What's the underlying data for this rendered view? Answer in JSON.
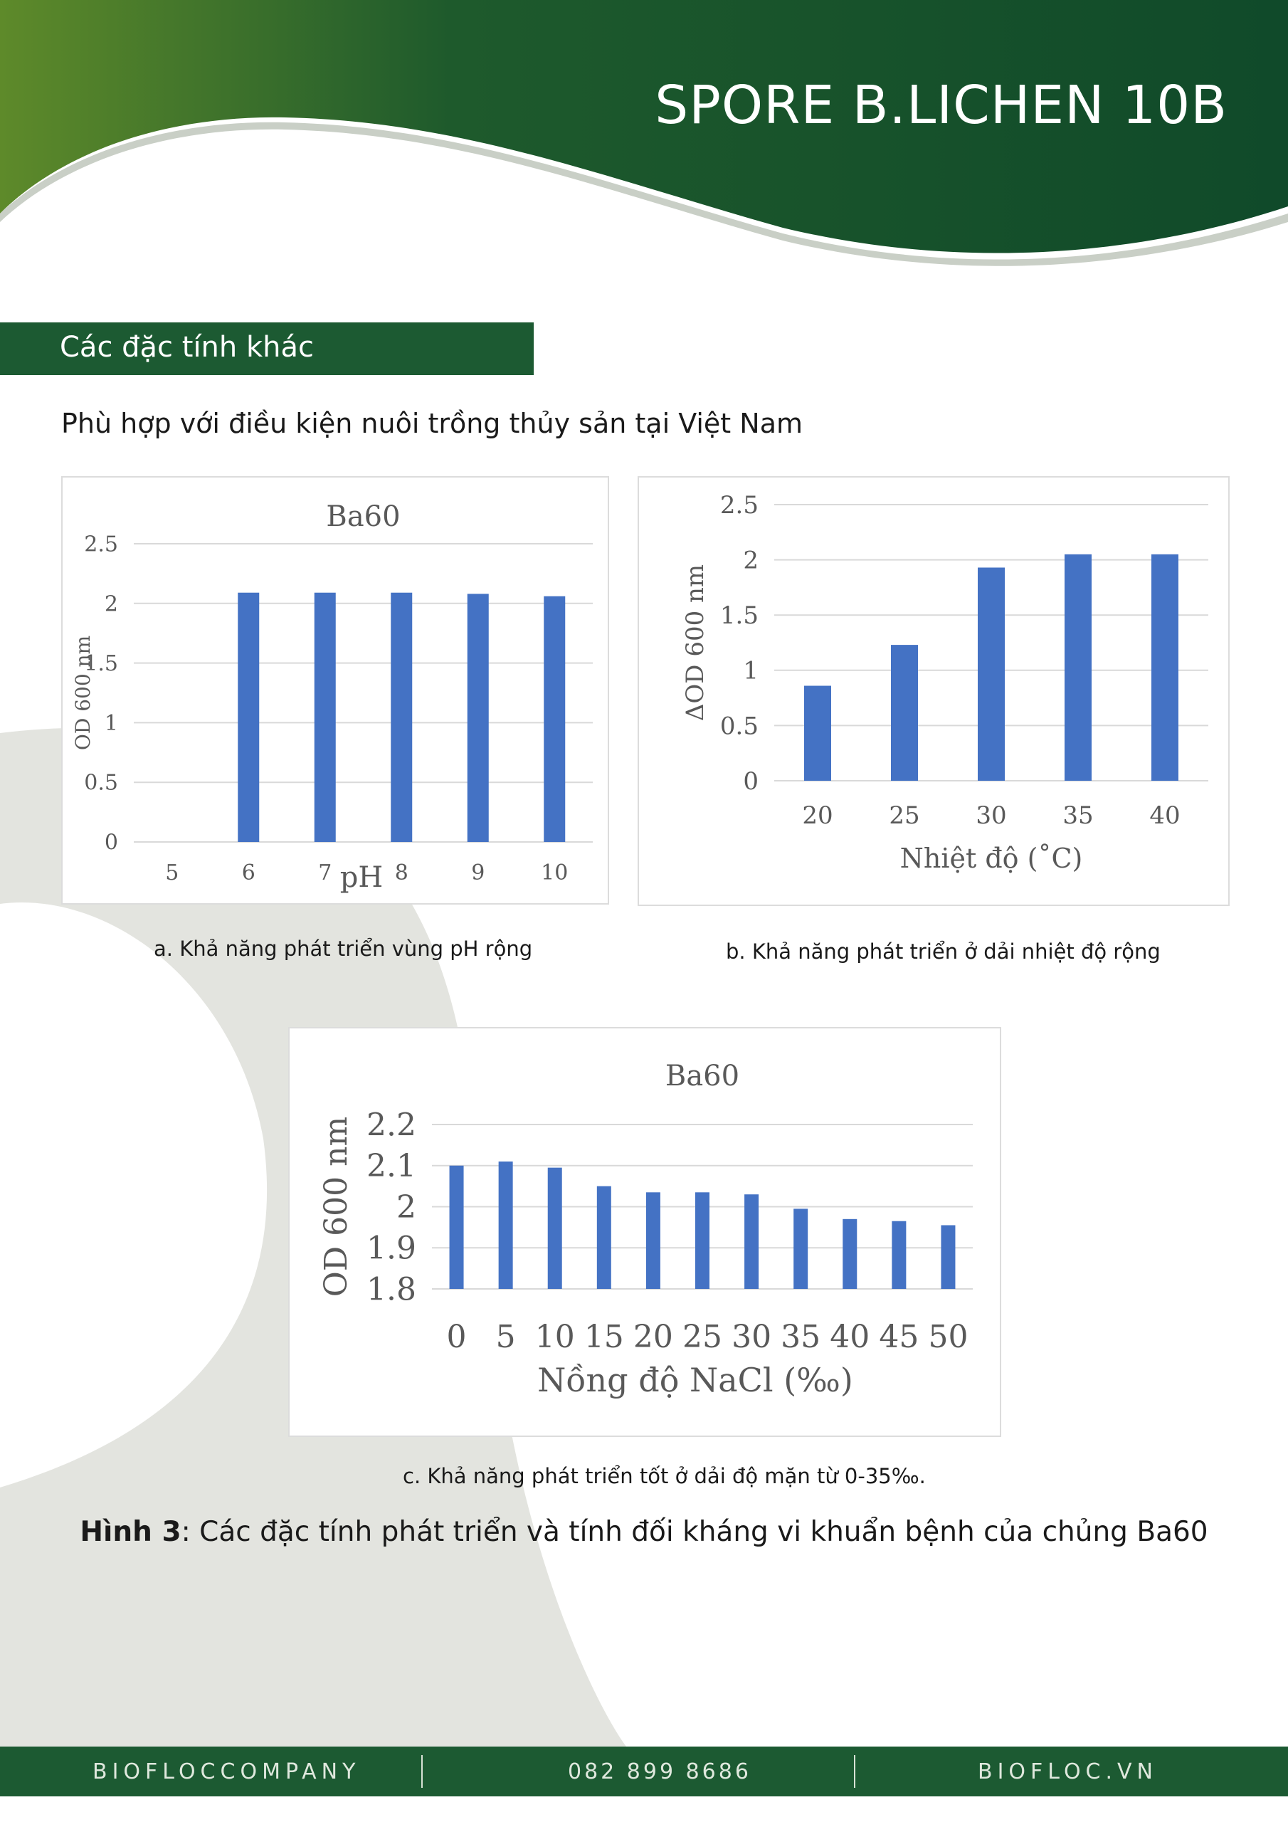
{
  "header": {
    "brand": "SPORE B.LICHEN 10B"
  },
  "section": {
    "title": "Các đặc tính khác"
  },
  "intro": "Phù hợp với điều kiện nuôi trồng thủy sản tại Việt Nam",
  "captions": {
    "a": "a. Khả năng phát triển vùng pH rộng",
    "b": "b. Khả năng phát triển ở dải nhiệt độ rộng",
    "c": "c. Khả năng phát triển tốt ở dải độ mặn từ 0-35‰."
  },
  "figure_caption": {
    "label": "Hình 3",
    "text": ": Các đặc tính phát triển và tính đối kháng vi khuẩn bệnh của chủng Ba60"
  },
  "footer": {
    "left": "BIOFLOCCOMPANY",
    "center": "082 899 8686",
    "right": "BIOFLOC.VN"
  },
  "colors": {
    "brand_green": "#1c5a32",
    "bar_blue": "#4472c4"
  },
  "chart_data": [
    {
      "type": "bar",
      "title": "Ba60",
      "xlabel": "pH",
      "ylabel": "OD 600 nm",
      "categories": [
        "5",
        "6",
        "7",
        "8",
        "9",
        "10"
      ],
      "values": [
        0,
        2.09,
        2.09,
        2.09,
        2.08,
        2.06
      ],
      "ylim": [
        0,
        2.5
      ],
      "yticks": [
        "0",
        "0.5",
        "1",
        "1.5",
        "2",
        "2.5"
      ],
      "grid": true
    },
    {
      "type": "bar",
      "title": "",
      "xlabel": "Nhiệt độ (˚C)",
      "ylabel": "ΔOD 600 nm",
      "categories": [
        "20",
        "25",
        "30",
        "35",
        "40"
      ],
      "values": [
        0.86,
        1.23,
        1.93,
        2.05,
        2.05
      ],
      "ylim": [
        0,
        2.5
      ],
      "yticks": [
        "0",
        "0.5",
        "1",
        "1.5",
        "2",
        "2.5"
      ],
      "grid": true
    },
    {
      "type": "bar",
      "title": "Ba60",
      "xlabel": "Nồng độ NaCl (‰)",
      "ylabel": "OD 600 nm",
      "categories": [
        "0",
        "5",
        "10",
        "15",
        "20",
        "25",
        "30",
        "35",
        "40",
        "45",
        "50"
      ],
      "values": [
        2.1,
        2.11,
        2.095,
        2.05,
        2.035,
        2.035,
        2.03,
        1.995,
        1.97,
        1.965,
        1.955
      ],
      "ylim": [
        1.8,
        2.2
      ],
      "yticks": [
        "1.8",
        "1.9",
        "2",
        "2.1",
        "2.2"
      ],
      "grid": true
    }
  ]
}
